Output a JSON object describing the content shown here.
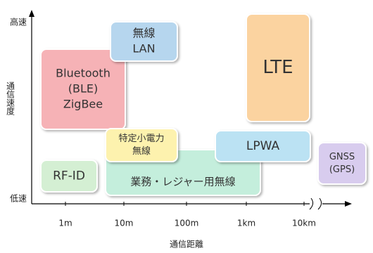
{
  "axes": {
    "y_label": "通信速度",
    "y_high": "高速",
    "y_low": "低速",
    "x_label": "通信距離",
    "x_ticks": [
      "1m",
      "10m",
      "100m",
      "1km",
      "10km"
    ]
  },
  "boxes": [
    {
      "lines": [
        "Bluetooth",
        "(BLE)",
        "ZigBee"
      ]
    },
    {
      "lines": [
        "無線",
        "LAN"
      ]
    },
    {
      "lines": [
        "LTE"
      ]
    },
    {
      "lines": [
        "業務・レジャー用無線"
      ]
    },
    {
      "lines": [
        "特定小電力",
        "無線"
      ]
    },
    {
      "lines": [
        "LPWA"
      ]
    },
    {
      "lines": [
        "RF-ID"
      ]
    },
    {
      "lines": [
        "GNSS",
        "(GPS)"
      ]
    }
  ]
}
